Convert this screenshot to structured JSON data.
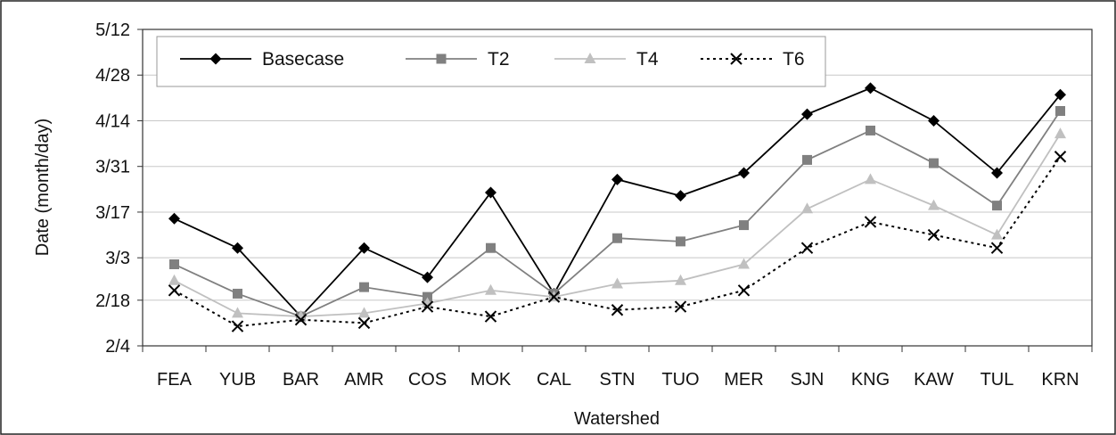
{
  "chart_data": {
    "type": "line",
    "xlabel": "Watershed",
    "ylabel": "Date (month/day)",
    "categories": [
      "FEA",
      "YUB",
      "BAR",
      "AMR",
      "COS",
      "MOK",
      "CAL",
      "STN",
      "TUO",
      "MER",
      "SJN",
      "KNG",
      "KAW",
      "TUL",
      "KRN"
    ],
    "y_ticks": [
      "2/4",
      "2/18",
      "3/3",
      "3/17",
      "3/31",
      "4/14",
      "4/28",
      "5/12"
    ],
    "ylim": [
      "2/4",
      "5/12"
    ],
    "grid": true,
    "legend_position": "top-left",
    "series": [
      {
        "name": "Basecase",
        "color": "#000000",
        "style": "solid",
        "marker": "diamond",
        "values": [
          "3/15",
          "3/6",
          "2/13",
          "3/6",
          "2/25",
          "3/23",
          "2/20",
          "3/27",
          "3/22",
          "3/29",
          "4/16",
          "4/24",
          "4/14",
          "3/29",
          "4/22"
        ]
      },
      {
        "name": "T2",
        "color": "#808080",
        "style": "solid",
        "marker": "square",
        "values": [
          "3/1",
          "2/20",
          "2/13",
          "2/22",
          "2/19",
          "3/6",
          "2/20",
          "3/9",
          "3/8",
          "3/13",
          "4/2",
          "4/11",
          "4/1",
          "3/19",
          "4/17"
        ]
      },
      {
        "name": "T4",
        "color": "#c0c0c0",
        "style": "solid",
        "marker": "triangle",
        "values": [
          "2/24",
          "2/14",
          "2/13",
          "2/14",
          "2/17",
          "2/21",
          "2/19",
          "2/23",
          "2/24",
          "3/1",
          "3/18",
          "3/27",
          "3/19",
          "3/10",
          "4/10"
        ]
      },
      {
        "name": "T6",
        "color": "#000000",
        "style": "dotted",
        "marker": "x",
        "values": [
          "2/21",
          "2/10",
          "2/12",
          "2/11",
          "2/16",
          "2/13",
          "2/19",
          "2/15",
          "2/16",
          "2/21",
          "3/6",
          "3/14",
          "3/10",
          "3/6",
          "4/3"
        ]
      }
    ]
  }
}
